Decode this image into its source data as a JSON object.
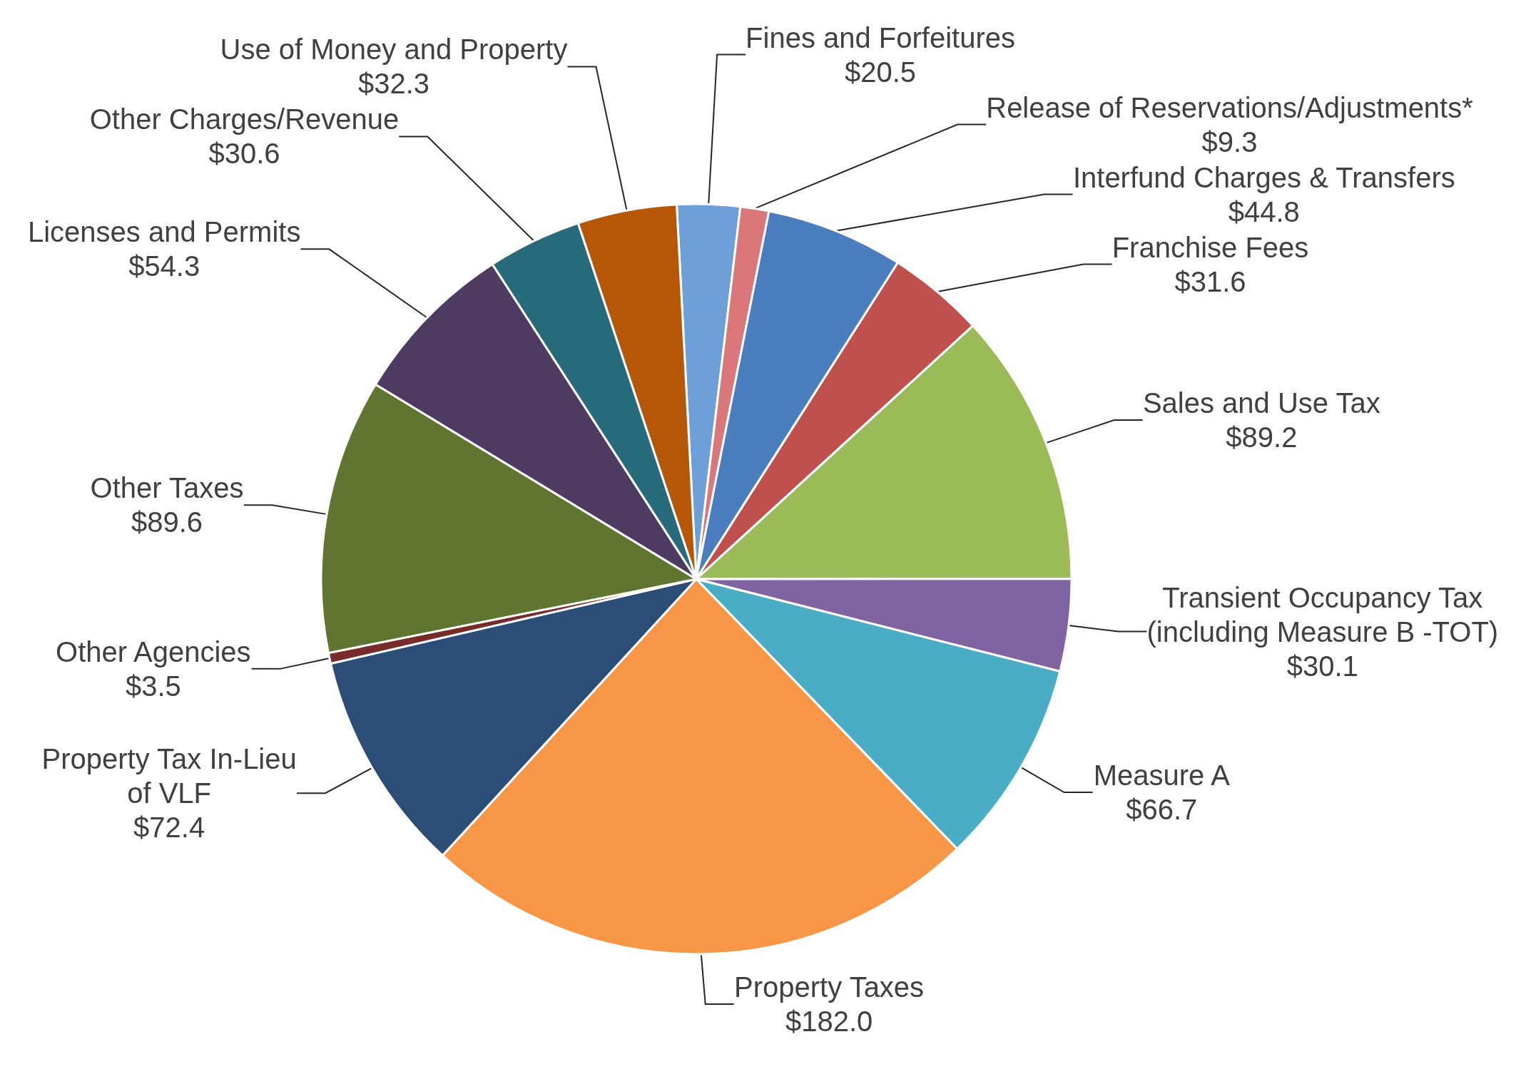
{
  "chart_data": {
    "type": "pie",
    "categories": [
      "Fines and Forfeitures",
      "Release of Reservations/Adjustments*",
      "Interfund Charges & Transfers",
      "Franchise Fees",
      "Sales and Use Tax",
      "Transient Occupancy Tax\n(including Measure B -TOT)",
      "Measure A",
      "Property Taxes",
      "Property Tax In-Lieu\nof VLF",
      "Other Agencies",
      "Other Taxes",
      "Licenses and Permits",
      "Other Charges/Revenue",
      "Use of Money and Property"
    ],
    "values": [
      20.5,
      9.3,
      44.8,
      31.6,
      89.2,
      30.1,
      66.7,
      182.0,
      72.4,
      3.5,
      89.6,
      54.3,
      30.6,
      32.3
    ],
    "value_labels": [
      "$20.5",
      "$9.3",
      "$44.8",
      "$31.6",
      "$89.2",
      "$30.1",
      "$66.7",
      "$182.0",
      "$72.4",
      "$3.5",
      "$89.6",
      "$54.3",
      "$30.6",
      "$32.3"
    ],
    "colors": [
      "#6f9fd8",
      "#d9777a",
      "#4a7ebf",
      "#c0504d",
      "#9bbb59",
      "#8064a2",
      "#4bacc6",
      "#f79646",
      "#2c4d75",
      "#772c2a",
      "#5f7530",
      "#4d3b62",
      "#276a7c",
      "#b65708"
    ],
    "legend": false
  }
}
